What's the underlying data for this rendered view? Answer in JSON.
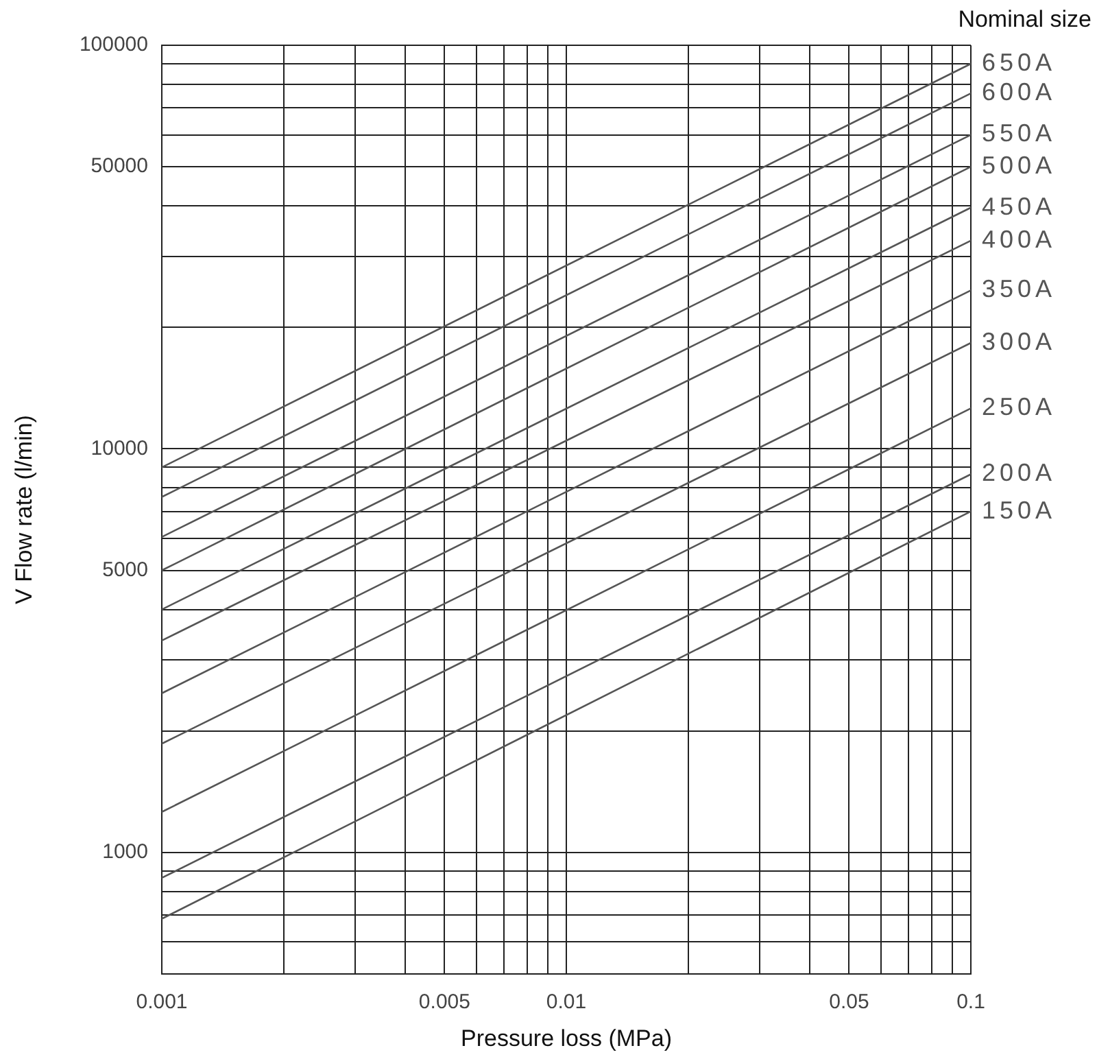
{
  "chart_data": {
    "type": "line",
    "xlabel": "Pressure loss (MPa)",
    "ylabel": "V Flow rate (l/min)",
    "legend_title": "Nominal size",
    "x": [
      0.001,
      0.1
    ],
    "series": [
      {
        "name": "650A",
        "color": "#555555",
        "values": [
          9000,
          90000
        ]
      },
      {
        "name": "600A",
        "color": "#555555",
        "values": [
          7600,
          76000
        ]
      },
      {
        "name": "550A",
        "color": "#555555",
        "values": [
          6050,
          60000
        ]
      },
      {
        "name": "500A",
        "color": "#555555",
        "values": [
          5000,
          50000
        ]
      },
      {
        "name": "450A",
        "color": "#555555",
        "values": [
          4000,
          39600
        ]
      },
      {
        "name": "400A",
        "color": "#555555",
        "values": [
          3350,
          32800
        ]
      },
      {
        "name": "350A",
        "color": "#555555",
        "values": [
          2480,
          24700
        ]
      },
      {
        "name": "300A",
        "color": "#555555",
        "values": [
          1860,
          18300
        ]
      },
      {
        "name": "250A",
        "color": "#555555",
        "values": [
          1260,
          12600
        ]
      },
      {
        "name": "200A",
        "color": "#555555",
        "values": [
          865,
          8650
        ]
      },
      {
        "name": "150A",
        "color": "#555555",
        "values": [
          685,
          7000
        ]
      }
    ],
    "log": "xy",
    "xlim": [
      0.001,
      0.1
    ],
    "xticks": [
      0.001,
      {
        "value": 0.002,
        "label": null
      },
      {
        "value": 0.003,
        "label": null
      },
      {
        "value": 0.004,
        "label": null
      },
      0.005,
      {
        "value": 0.006,
        "label": null
      },
      {
        "value": 0.007,
        "label": null
      },
      {
        "value": 0.008,
        "label": null
      },
      {
        "value": 0.009,
        "label": null
      },
      0.01,
      {
        "value": 0.02,
        "label": null
      },
      {
        "value": 0.03,
        "label": null
      },
      {
        "value": 0.04,
        "label": null
      },
      0.05,
      {
        "value": 0.06,
        "label": null
      },
      {
        "value": 0.07,
        "label": null
      },
      {
        "value": 0.08,
        "label": null
      },
      {
        "value": 0.09,
        "label": null
      },
      0.1
    ],
    "ylim": [
      500,
      100000
    ],
    "yticks": [
      {
        "value": 600,
        "label": null
      },
      {
        "value": 700,
        "label": null
      },
      {
        "value": 800,
        "label": null
      },
      {
        "value": 900,
        "label": null
      },
      1000,
      {
        "value": 2000,
        "label": null
      },
      {
        "value": 3000,
        "label": null
      },
      {
        "value": 4000,
        "label": null
      },
      5000,
      {
        "value": 6000,
        "label": null
      },
      {
        "value": 7000,
        "label": null
      },
      {
        "value": 8000,
        "label": null
      },
      {
        "value": 9000,
        "label": null
      },
      10000,
      {
        "value": 20000,
        "label": null
      },
      {
        "value": 30000,
        "label": null
      },
      {
        "value": 40000,
        "label": null
      },
      50000,
      {
        "value": 60000,
        "label": null
      },
      {
        "value": 70000,
        "label": null
      },
      {
        "value": 80000,
        "label": null
      },
      {
        "value": 90000,
        "label": null
      },
      100000
    ],
    "grid": true,
    "marker": "none"
  }
}
